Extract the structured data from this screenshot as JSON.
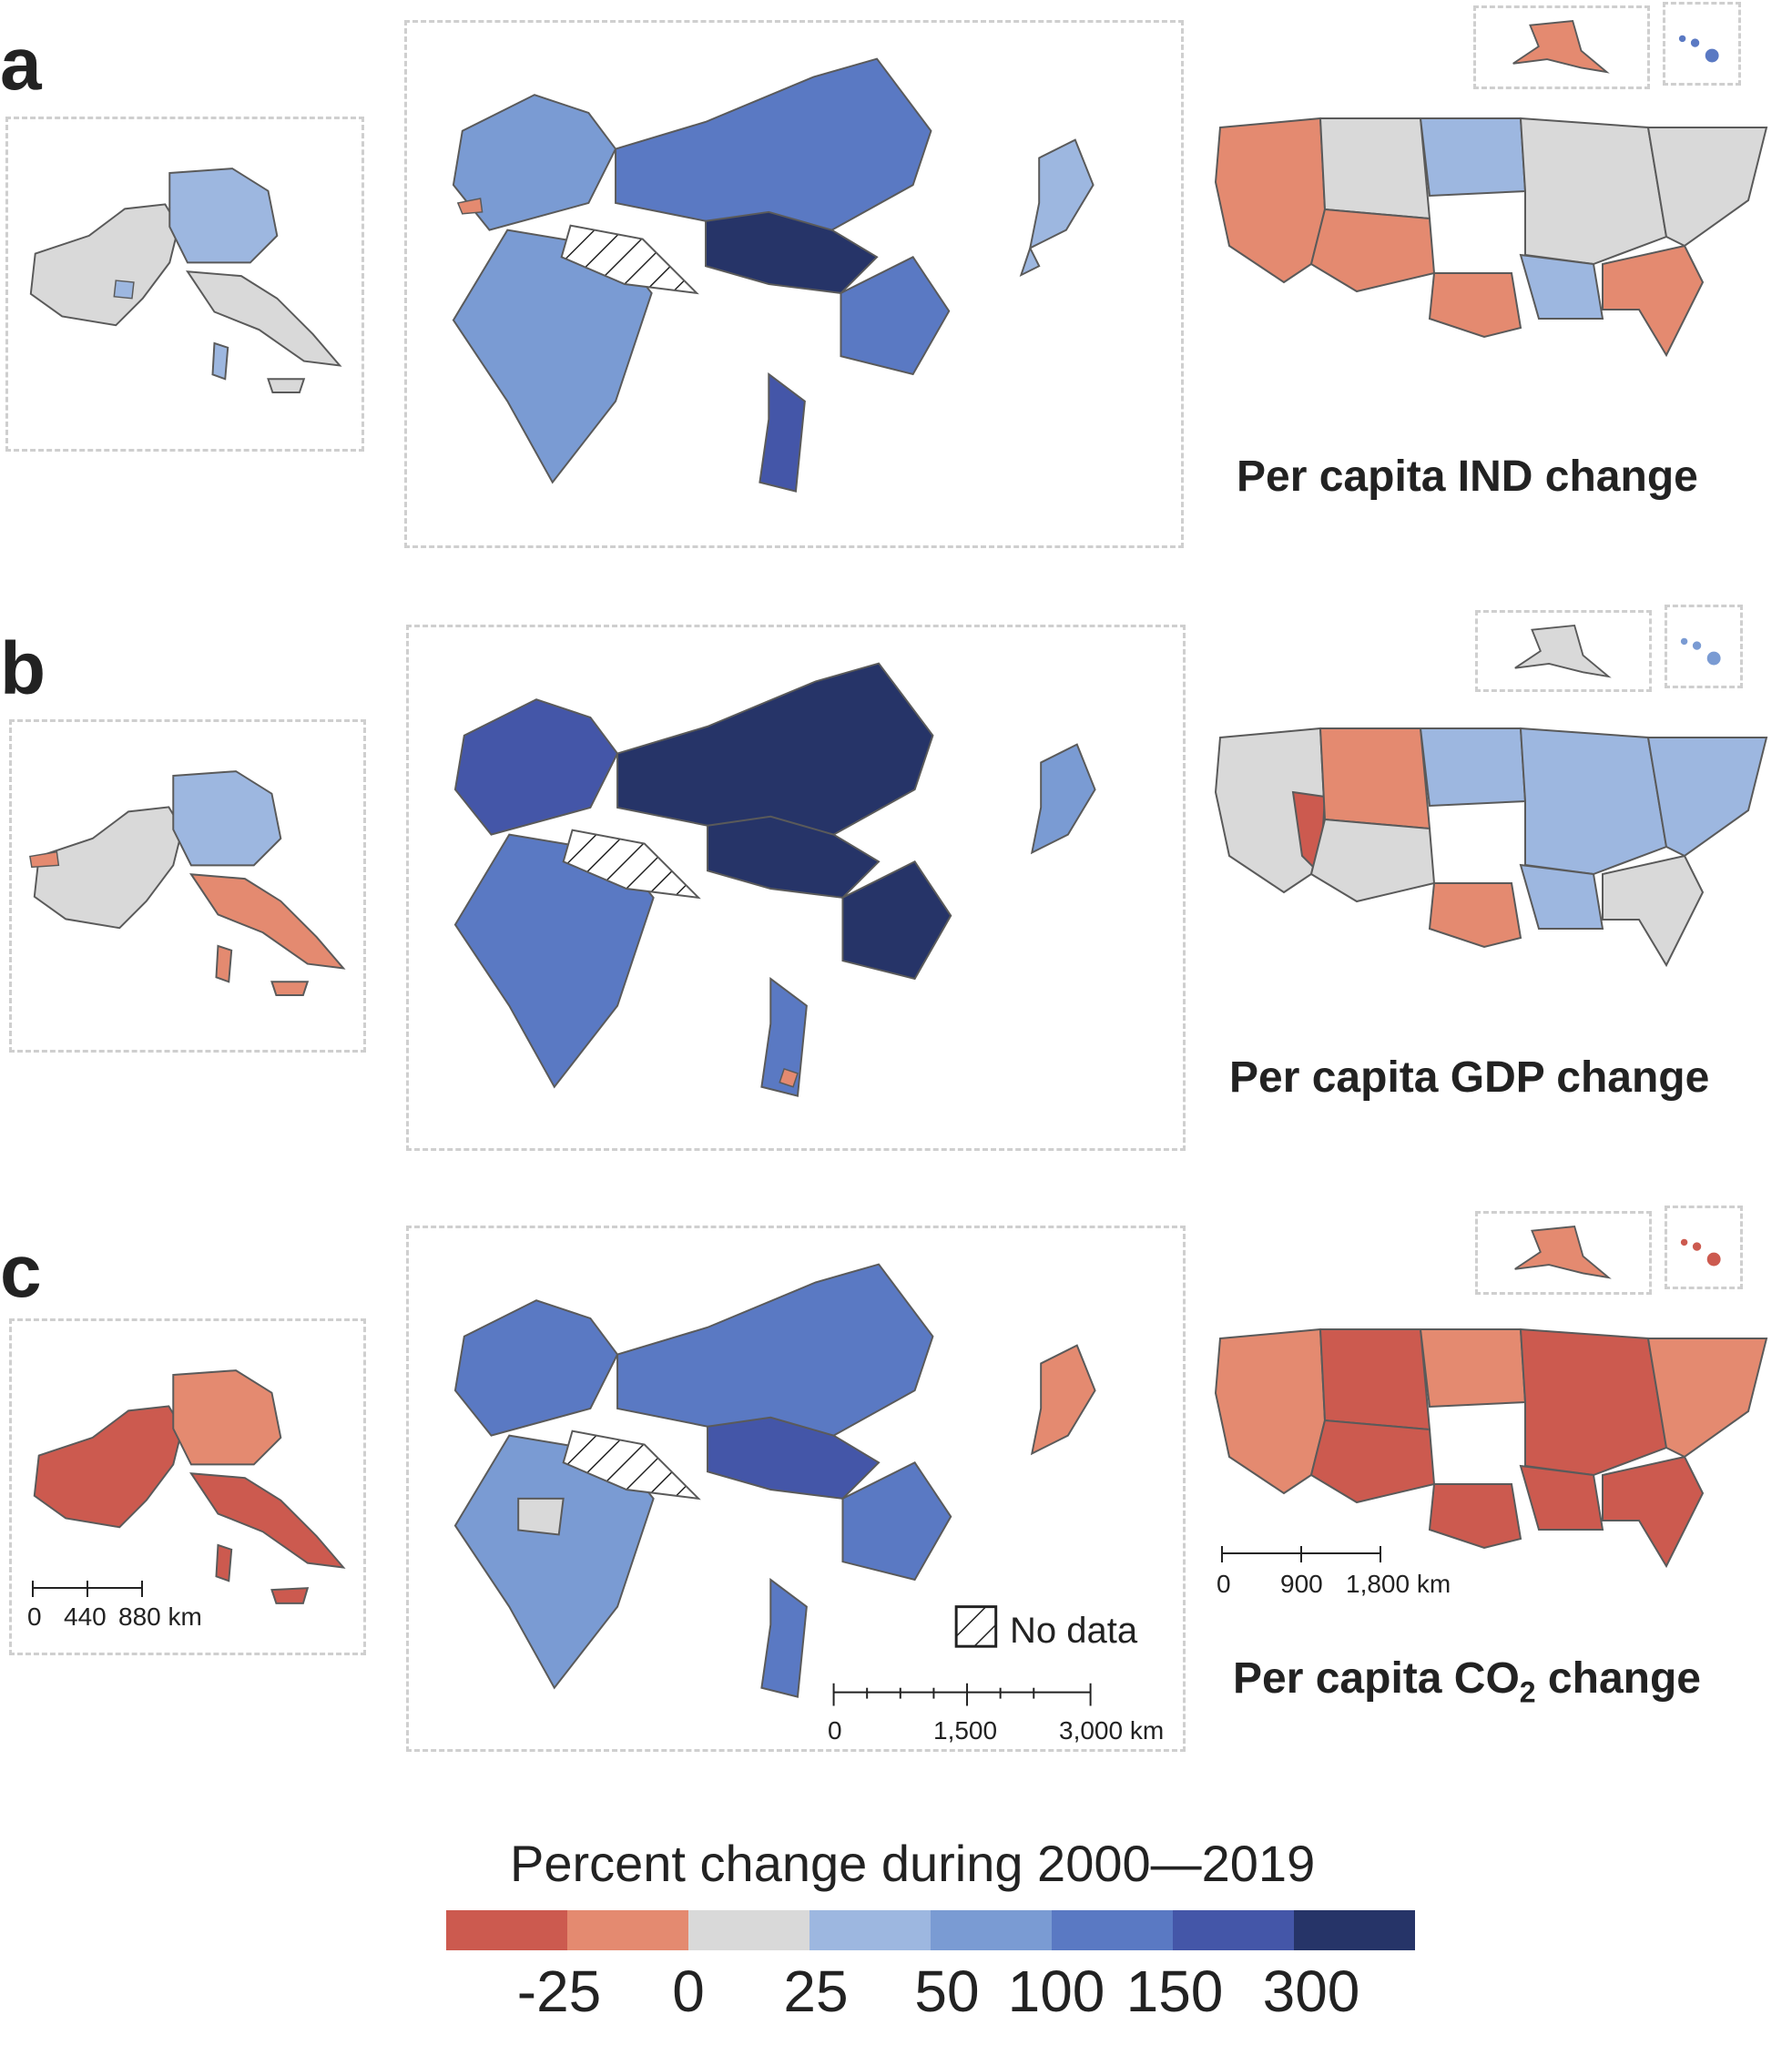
{
  "panels": [
    {
      "letter": "a",
      "title": "Per capita IND change"
    },
    {
      "letter": "b",
      "title": "Per capita GDP change"
    },
    {
      "letter": "c",
      "title_main": "Per capita CO",
      "title_sub": "2",
      "title_tail": " change"
    }
  ],
  "colors": {
    "neg25": "#cc5a4f",
    "zero": "#e48a70",
    "neutral": "#d9d9d9",
    "p50": "#9db7e0",
    "p100": "#7a9bd3",
    "p150": "#5a79c3",
    "p300": "#4456a8",
    "top": "#263468",
    "border": "#5a5a5a",
    "frame": "#cfcfcf"
  },
  "scales": {
    "europe": {
      "labels": [
        "0",
        "440",
        "880 km"
      ]
    },
    "asia": {
      "labels": [
        "0",
        "1,500",
        "3,000 km"
      ]
    },
    "usa": {
      "labels": [
        "0",
        "900",
        "1,800 km"
      ]
    }
  },
  "legend": {
    "title": "Percent change during 2000—2019",
    "ticks": [
      "-25",
      "0",
      "25",
      "50",
      "100",
      "150",
      "300"
    ],
    "no_data": "No data"
  }
}
